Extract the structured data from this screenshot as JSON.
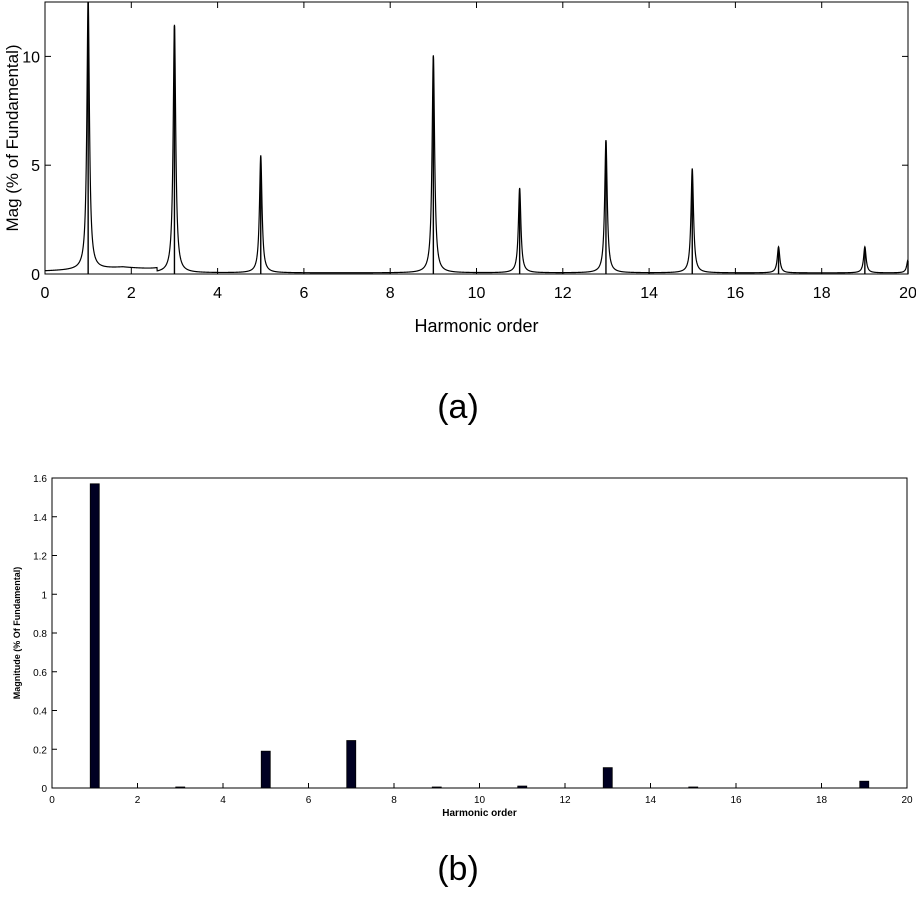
{
  "captions": {
    "a": "(a)",
    "b": "(b)"
  },
  "chart_data": [
    {
      "id": "a",
      "type": "line",
      "xlabel": "Harmonic order",
      "ylabel": "Mag (% of Fundamental)",
      "xlim": [
        0,
        20
      ],
      "ylim": [
        0,
        12.5
      ],
      "xticks": [
        0,
        2,
        4,
        6,
        8,
        10,
        12,
        14,
        16,
        18,
        20
      ],
      "yticks": [
        0,
        5,
        10
      ],
      "grid": false,
      "color": "#000000",
      "peaks": [
        {
          "x": 1,
          "y": 12.5
        },
        {
          "x": 3,
          "y": 11.4
        },
        {
          "x": 5,
          "y": 5.4
        },
        {
          "x": 9,
          "y": 10.0
        },
        {
          "x": 11,
          "y": 3.9
        },
        {
          "x": 13,
          "y": 6.1
        },
        {
          "x": 15,
          "y": 4.8
        },
        {
          "x": 17,
          "y": 1.2
        },
        {
          "x": 19,
          "y": 1.2
        },
        {
          "x": 20,
          "y": 0.6
        }
      ]
    },
    {
      "id": "b",
      "type": "bar",
      "xlabel": "Harmonic order",
      "ylabel": "Magnitude (% Of Fundamental)",
      "xlim": [
        0,
        20
      ],
      "ylim": [
        0,
        1.6
      ],
      "xticks": [
        0,
        2,
        4,
        6,
        8,
        10,
        12,
        14,
        16,
        18,
        20
      ],
      "yticks": [
        0,
        0.2,
        0.4,
        0.6,
        0.8,
        1,
        1.2,
        1.4,
        1.6
      ],
      "grid": false,
      "bar_color": "#000022",
      "x": [
        1,
        3,
        5,
        7,
        9,
        11,
        13,
        15,
        19
      ],
      "values": [
        1.57,
        0.005,
        0.19,
        0.245,
        0.005,
        0.01,
        0.105,
        0.005,
        0.035
      ]
    }
  ]
}
